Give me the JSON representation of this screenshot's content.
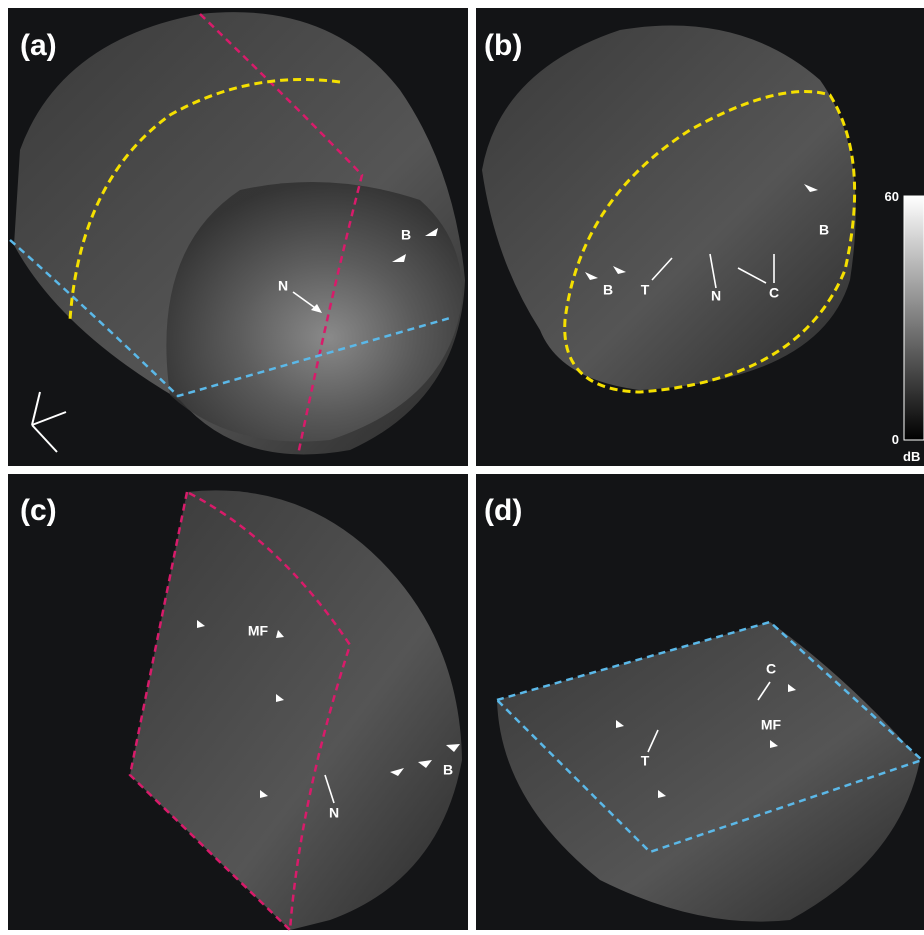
{
  "panels": [
    {
      "label": "(a)",
      "annotations": [
        "N",
        "B"
      ]
    },
    {
      "label": "(b)",
      "annotations": [
        "B",
        "T",
        "N",
        "C",
        "B"
      ]
    },
    {
      "label": "(c)",
      "annotations": [
        "MF",
        "B",
        "N"
      ]
    },
    {
      "label": "(d)",
      "annotations": [
        "C",
        "MF",
        "T"
      ]
    }
  ],
  "colorbar": {
    "top": "60",
    "bottom": "0",
    "unit": "dB"
  }
}
